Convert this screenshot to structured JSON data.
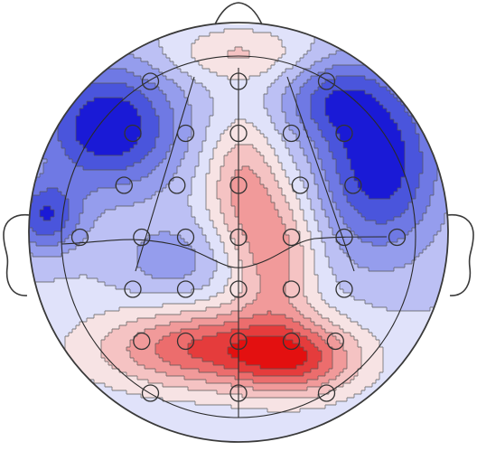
{
  "colors": {
    "background": "#ffffff",
    "outline": "#3a3a3a",
    "contour": "#555555",
    "electrode": "#333333",
    "scale": [
      "#1a1ad6",
      "#4a55dc",
      "#6f79e4",
      "#959ded",
      "#bcc0f4",
      "#e0e2fa",
      "#f7e3e4",
      "#f5c3c3",
      "#f19a9a",
      "#ec6d6d",
      "#e53c3c",
      "#e31010"
    ]
  },
  "electrode_grid": {
    "rows": [
      {
        "v": 0.2,
        "cols": [
          -0.5,
          0.0,
          0.5
        ]
      },
      {
        "v": 0.4,
        "cols": [
          -0.6,
          -0.3,
          0.0,
          0.3,
          0.6
        ]
      },
      {
        "v": 0.6,
        "cols": [
          -0.65,
          -0.35,
          0.0,
          0.35,
          0.65
        ]
      },
      {
        "v": 0.8,
        "cols": [
          -0.9,
          -0.55,
          -0.3,
          0.0,
          0.3,
          0.6,
          0.9
        ]
      },
      {
        "v": 1.0,
        "cols": [
          -0.6,
          -0.3,
          0.0,
          0.3,
          0.6
        ]
      },
      {
        "v": 1.2,
        "cols": [
          -0.55,
          -0.3,
          0.0,
          0.3,
          0.55
        ]
      },
      {
        "v": 1.4,
        "cols": [
          -0.5,
          0.0,
          0.5
        ]
      }
    ]
  }
}
